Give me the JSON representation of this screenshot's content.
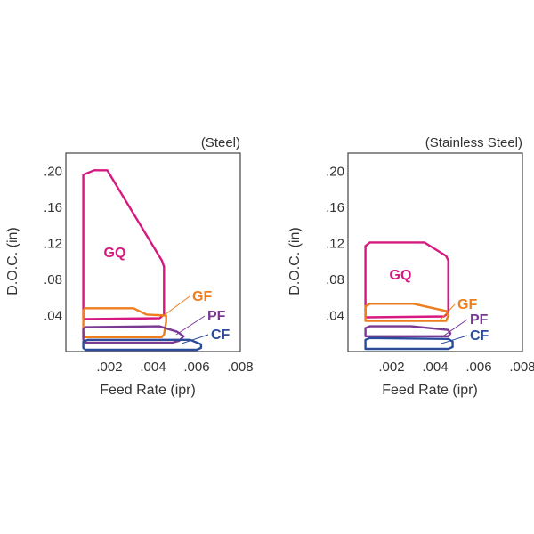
{
  "chart_data": [
    {
      "type": "area",
      "subtitle": "(Steel)",
      "xlabel": "Feed Rate (ipr)",
      "ylabel": "D.O.C. (in)",
      "xlim": [
        0,
        0.008
      ],
      "ylim": [
        0,
        0.22
      ],
      "xticks": [
        ".002",
        ".004",
        ".006",
        ".008"
      ],
      "yticks": [
        ".04",
        ".08",
        ".12",
        ".16",
        ".20"
      ],
      "xtick_values": [
        0.002,
        0.004,
        0.006,
        0.008
      ],
      "ytick_values": [
        0.04,
        0.08,
        0.12,
        0.16,
        0.2
      ],
      "grid": false,
      "legend": "inline labels",
      "series": [
        {
          "name": "GQ",
          "color": "#d6197f",
          "points": [
            [
              0.0008,
              0.036
            ],
            [
              0.0008,
              0.196
            ],
            [
              0.0013,
              0.201
            ],
            [
              0.0019,
              0.201
            ],
            [
              0.0044,
              0.101
            ],
            [
              0.0045,
              0.094
            ],
            [
              0.0045,
              0.041
            ],
            [
              0.0043,
              0.037
            ],
            [
              0.0009,
              0.036
            ]
          ]
        },
        {
          "name": "GF",
          "color": "#ee7d1e",
          "points": [
            [
              0.0008,
              0.016
            ],
            [
              0.0008,
              0.046
            ],
            [
              0.0009,
              0.048
            ],
            [
              0.0031,
              0.048
            ],
            [
              0.0037,
              0.041
            ],
            [
              0.0046,
              0.04
            ],
            [
              0.0046,
              0.033
            ],
            [
              0.0045,
              0.019
            ],
            [
              0.0044,
              0.016
            ],
            [
              0.0009,
              0.016
            ]
          ]
        },
        {
          "name": "PF",
          "color": "#7a3a94",
          "points": [
            [
              0.0009,
              0.01
            ],
            [
              0.0008,
              0.013
            ],
            [
              0.0008,
              0.025
            ],
            [
              0.0009,
              0.027
            ],
            [
              0.0043,
              0.028
            ],
            [
              0.0051,
              0.022
            ],
            [
              0.0054,
              0.017
            ],
            [
              0.0052,
              0.012
            ],
            [
              0.0049,
              0.01
            ]
          ]
        },
        {
          "name": "CF",
          "color": "#2b4c9a",
          "points": [
            [
              0.0009,
              0.002
            ],
            [
              0.0008,
              0.004
            ],
            [
              0.0008,
              0.011
            ],
            [
              0.001,
              0.013
            ],
            [
              0.0057,
              0.013
            ],
            [
              0.0062,
              0.008
            ],
            [
              0.0062,
              0.004
            ],
            [
              0.006,
              0.002
            ]
          ]
        }
      ]
    },
    {
      "type": "area",
      "subtitle": "(Stainless Steel)",
      "xlabel": "Feed Rate (ipr)",
      "ylabel": "D.O.C. (in)",
      "xlim": [
        0,
        0.008
      ],
      "ylim": [
        0,
        0.22
      ],
      "xticks": [
        ".002",
        ".004",
        ".006",
        ".008"
      ],
      "yticks": [
        ".04",
        ".08",
        ".12",
        ".16",
        ".20"
      ],
      "xtick_values": [
        0.002,
        0.004,
        0.006,
        0.008
      ],
      "ytick_values": [
        0.04,
        0.08,
        0.12,
        0.16,
        0.2
      ],
      "grid": false,
      "legend": "inline labels",
      "series": [
        {
          "name": "GQ",
          "color": "#d6197f",
          "points": [
            [
              0.0008,
              0.038
            ],
            [
              0.0008,
              0.117
            ],
            [
              0.001,
              0.121
            ],
            [
              0.0035,
              0.121
            ],
            [
              0.0045,
              0.106
            ],
            [
              0.0046,
              0.101
            ],
            [
              0.0046,
              0.043
            ],
            [
              0.0044,
              0.039
            ],
            [
              0.0009,
              0.038
            ]
          ]
        },
        {
          "name": "GF",
          "color": "#ee7d1e",
          "points": [
            [
              0.0008,
              0.034
            ],
            [
              0.0008,
              0.05
            ],
            [
              0.001,
              0.053
            ],
            [
              0.003,
              0.053
            ],
            [
              0.0045,
              0.045
            ],
            [
              0.0046,
              0.04
            ],
            [
              0.0045,
              0.034
            ]
          ]
        },
        {
          "name": "PF",
          "color": "#7a3a94",
          "points": [
            [
              0.0008,
              0.017
            ],
            [
              0.0008,
              0.026
            ],
            [
              0.001,
              0.028
            ],
            [
              0.0029,
              0.028
            ],
            [
              0.0046,
              0.024
            ],
            [
              0.0047,
              0.02
            ],
            [
              0.0046,
              0.017
            ]
          ]
        },
        {
          "name": "CF",
          "color": "#2b4c9a",
          "points": [
            [
              0.0008,
              0.003
            ],
            [
              0.0008,
              0.013
            ],
            [
              0.001,
              0.015
            ],
            [
              0.0046,
              0.014
            ],
            [
              0.0048,
              0.011
            ],
            [
              0.0048,
              0.005
            ],
            [
              0.0046,
              0.003
            ]
          ]
        }
      ]
    }
  ]
}
